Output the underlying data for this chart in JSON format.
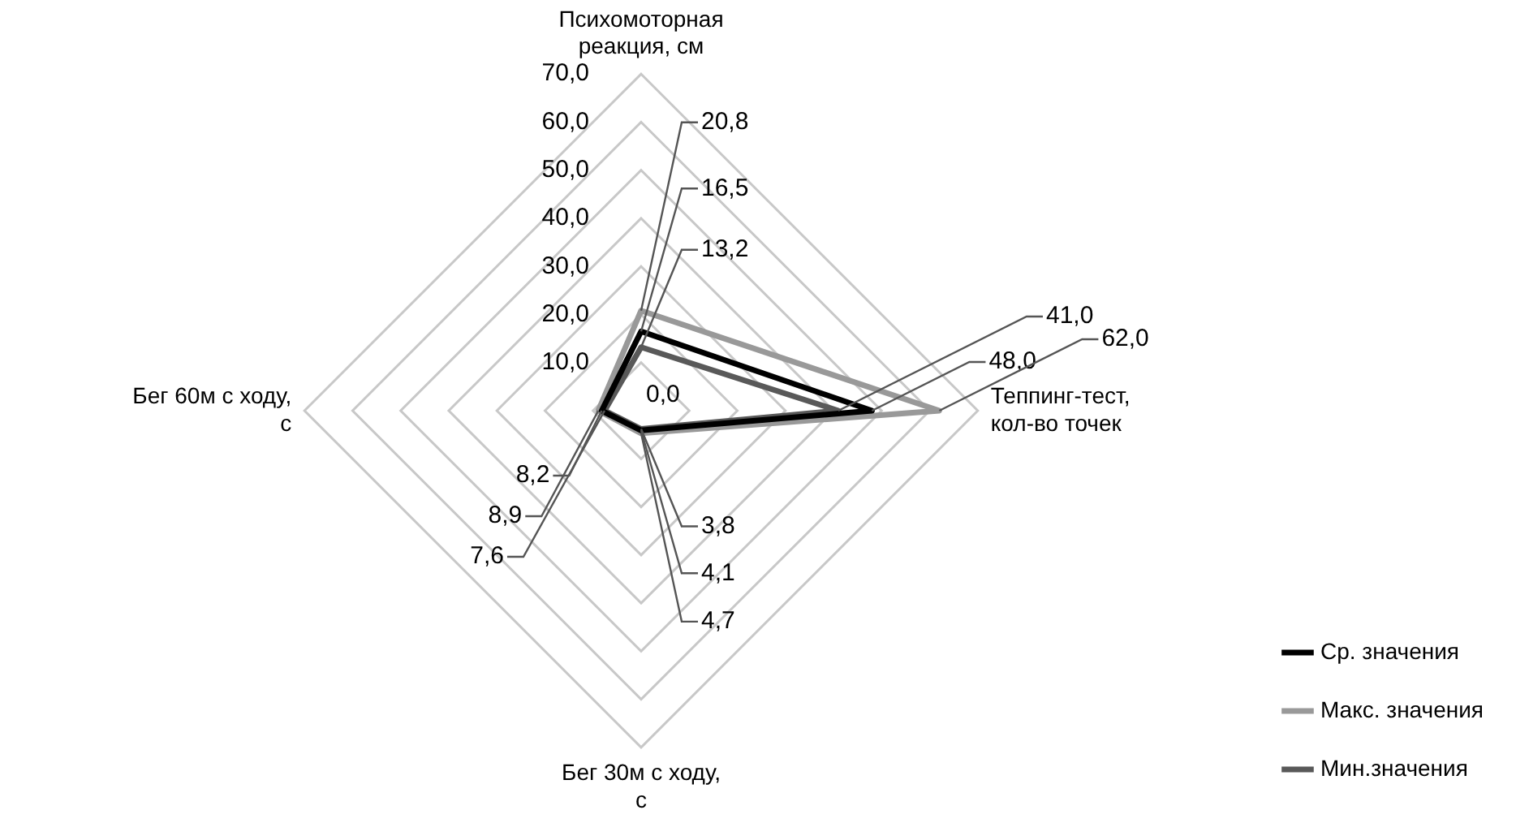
{
  "chart_data": {
    "type": "radar",
    "categories": [
      "Психомоторная реакция, см",
      "Теппинг-тест, кол-во точек",
      "Бег 30м с ходу, с",
      "Бег 60м с ходу, с"
    ],
    "series": [
      {
        "name": "Ср. значения",
        "color": "#000000",
        "values": [
          16.5,
          48.0,
          4.1,
          8.2
        ],
        "value_labels": [
          "16,5",
          "48,0",
          "4,1",
          "8,2"
        ]
      },
      {
        "name": "Макс. значения",
        "color": "#999999",
        "values": [
          20.8,
          62.0,
          4.7,
          8.9
        ],
        "value_labels": [
          "20,8",
          "62,0",
          "4,7",
          "8,9"
        ]
      },
      {
        "name": "Мин.значения",
        "color": "#595959",
        "values": [
          13.2,
          41.0,
          3.8,
          7.6
        ],
        "value_labels": [
          "13,2",
          "41,0",
          "3,8",
          "7,6"
        ]
      }
    ],
    "ylim": [
      0,
      70
    ],
    "yticks": [
      {
        "value": 0,
        "label": "0,0"
      },
      {
        "value": 10,
        "label": "10,0"
      },
      {
        "value": 20,
        "label": "20,0"
      },
      {
        "value": 30,
        "label": "30,0"
      },
      {
        "value": 40,
        "label": "40,0"
      },
      {
        "value": 50,
        "label": "50,0"
      },
      {
        "value": 60,
        "label": "60,0"
      },
      {
        "value": 70,
        "label": "70,0"
      }
    ],
    "grid": true,
    "legend": "bottom right",
    "marker": "none",
    "line_style": "solid"
  }
}
